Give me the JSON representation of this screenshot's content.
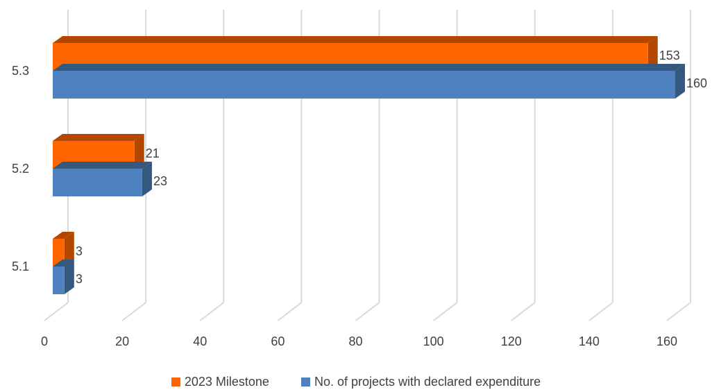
{
  "chart_data": {
    "type": "bar",
    "orientation": "horizontal",
    "style": "3d",
    "categories": [
      "5.1",
      "5.2",
      "5.3"
    ],
    "series": [
      {
        "name": "2023 Milestone",
        "values": [
          3,
          21,
          153
        ],
        "color": "#FF6600",
        "side_color": "#B34700"
      },
      {
        "name": "No. of projects with declared expenditure",
        "values": [
          3,
          23,
          160
        ],
        "color": "#4E81BD",
        "side_color": "#35587F"
      }
    ],
    "xticks": [
      "0",
      "20",
      "40",
      "60",
      "80",
      "100",
      "120",
      "140",
      "160"
    ],
    "xlim": [
      0,
      160
    ],
    "grid": true,
    "legend_position": "bottom",
    "title": "",
    "xlabel": "",
    "ylabel": ""
  }
}
